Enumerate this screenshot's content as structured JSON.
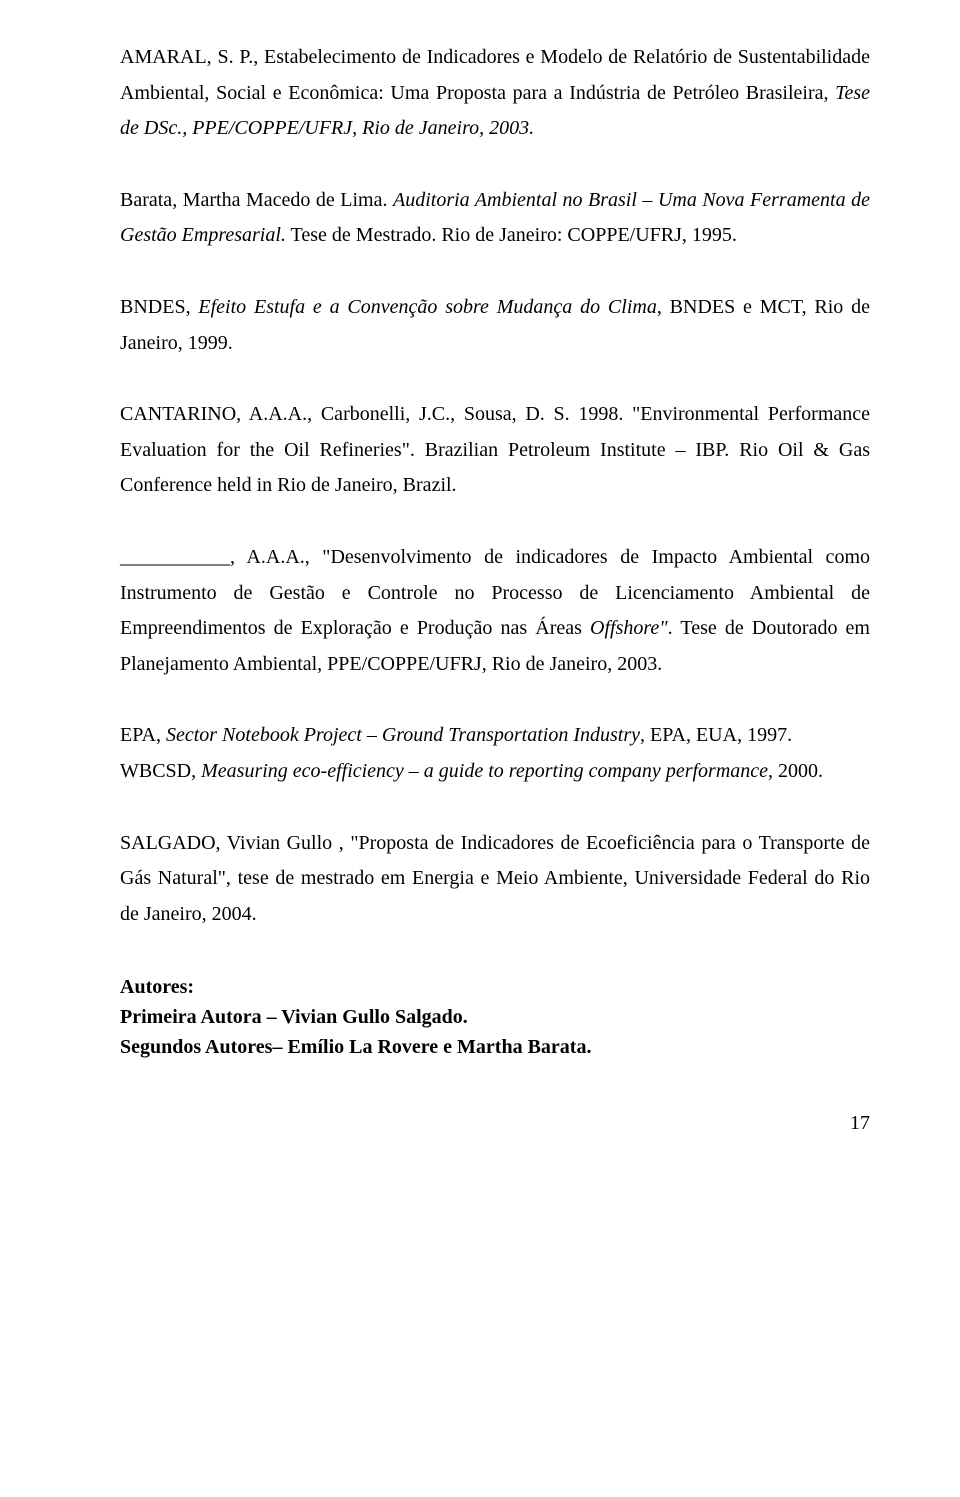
{
  "refs": {
    "r1a": "AMARAL, S. P., Estabelecimento de Indicadores e Modelo de Relatório de Sustentabilidade Ambiental, Social e Econômica: Uma Proposta para a Indústria  de Petróleo Brasileira",
    "r1b": ", Tese de DSc., PPE/COPPE/UFRJ, Rio de Janeiro, 2003.",
    "r2a": "Barata, Martha Macedo de Lima. ",
    "r2b": "Auditoria Ambiental no Brasil – Uma Nova Ferramenta de Gestão Empresarial.",
    "r2c": " Tese de Mestrado. Rio de Janeiro: COPPE/UFRJ, 1995.",
    "r3a": "BNDES, ",
    "r3b": "Efeito Estufa e a Convenção sobre Mudança do Clima",
    "r3c": ", BNDES e MCT, Rio de Janeiro, 1999.",
    "r4": "CANTARINO, A.A.A., Carbonelli, J.C., Sousa, D. S. 1998. \"Environmental Performance Evaluation for the Oil Refineries\". Brazilian Petroleum Institute – IBP. Rio Oil & Gas Conference held in Rio de Janeiro, Brazil.",
    "r5a": "___________, A.A.A., \"Desenvolvimento de indicadores de Impacto Ambiental como Instrumento de Gestão e Controle no Processo de Licenciamento Ambiental de Empreendimentos de Exploração e Produção nas Áreas ",
    "r5b": "Offshore\"",
    "r5c": ". Tese de Doutorado em Planejamento Ambiental, PPE/COPPE/UFRJ, Rio de Janeiro, 2003.",
    "r6a": "EPA, ",
    "r6b": "Sector Notebook Project – Ground Transportation Industry",
    "r6c": ", EPA, EUA, 1997.",
    "r7a": "WBCSD, ",
    "r7b": "Measuring eco-efficiency – a guide to reporting company performance",
    "r7c": ", 2000.",
    "r8": "SALGADO, Vivian Gullo , \"Proposta de Indicadores de Ecoeficiência para o Transporte de Gás Natural\", tese de mestrado em Energia e Meio Ambiente, Universidade Federal do Rio de Janeiro, 2004."
  },
  "authors": {
    "heading": "Autores:",
    "line1": "Primeira Autora – Vivian Gullo Salgado.",
    "line2": "Segundos Autores– Emílio La Rovere e Martha Barata."
  },
  "pagenum": "17"
}
